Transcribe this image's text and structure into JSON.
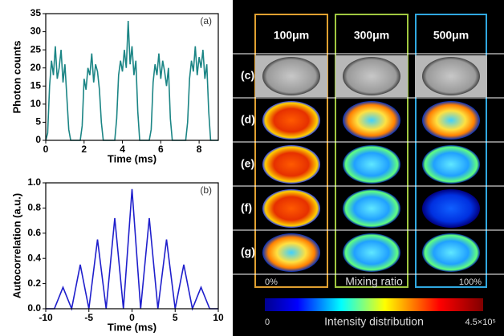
{
  "chart_data": [
    {
      "type": "line",
      "panel_label": "(a)",
      "y_label": "Photon counts",
      "x_label": "Time (ms)",
      "xlim": [
        0,
        9
      ],
      "xticks": [
        0,
        2,
        4,
        6,
        8
      ],
      "ylim": [
        0,
        35
      ],
      "yticks": [
        0,
        5,
        10,
        15,
        20,
        25,
        30,
        35
      ],
      "grid": false,
      "x": [
        0,
        0.1,
        0.2,
        0.3,
        0.4,
        0.5,
        0.6,
        0.7,
        0.8,
        0.9,
        1.0,
        1.1,
        1.2,
        1.3,
        1.4,
        1.5,
        1.6,
        1.7,
        1.8,
        1.9,
        2.0,
        2.1,
        2.2,
        2.3,
        2.4,
        2.5,
        2.6,
        2.7,
        2.8,
        2.9,
        3.0,
        3.1,
        3.2,
        3.3,
        3.4,
        3.5,
        3.6,
        3.7,
        3.8,
        3.9,
        4.0,
        4.1,
        4.2,
        4.3,
        4.4,
        4.5,
        4.6,
        4.7,
        4.8,
        4.9,
        5.0,
        5.1,
        5.2,
        5.3,
        5.4,
        5.5,
        5.6,
        5.7,
        5.8,
        5.9,
        6.0,
        6.1,
        6.2,
        6.3,
        6.4,
        6.5,
        6.6,
        6.7,
        6.8,
        6.9,
        7.0,
        7.1,
        7.2,
        7.3,
        7.4,
        7.5,
        7.6,
        7.7,
        7.8,
        7.9,
        8.0,
        8.1,
        8.2,
        8.3,
        8.4,
        8.5,
        8.6,
        8.7,
        8.8,
        8.9,
        9.0
      ],
      "series": [
        {
          "color": "#1b8585",
          "values": [
            0,
            2,
            15,
            22,
            18,
            26,
            17,
            20,
            25,
            16,
            21,
            12,
            3,
            0,
            0,
            0,
            0,
            0,
            0,
            4,
            17,
            14,
            20,
            18,
            24,
            16,
            21,
            19,
            14,
            5,
            0,
            0,
            0,
            0,
            0,
            0,
            0,
            6,
            18,
            22,
            19,
            25,
            20,
            33,
            21,
            26,
            18,
            22,
            8,
            0,
            0,
            0,
            0,
            0,
            0,
            3,
            16,
            21,
            18,
            24,
            17,
            22,
            19,
            15,
            20,
            6,
            0,
            0,
            0,
            0,
            0,
            0,
            0,
            0,
            5,
            17,
            22,
            19,
            26,
            18,
            23,
            20,
            25,
            17,
            21,
            8,
            0,
            0,
            0,
            0,
            0
          ]
        }
      ]
    },
    {
      "type": "line",
      "panel_label": "(b)",
      "y_label": "Autocorrelation (a.u.)",
      "x_label": "Time (ms)",
      "xlim": [
        -10,
        10
      ],
      "xticks": [
        -10,
        -5,
        0,
        5,
        10
      ],
      "ylim": [
        0,
        1
      ],
      "yticks": [
        {
          "value": 0,
          "label": "0.0"
        },
        0.2,
        0.4,
        0.6,
        0.8,
        {
          "value": 1,
          "label": "1.0"
        }
      ],
      "grid": false,
      "x": [
        -10,
        -9,
        -8,
        -7,
        -6,
        -5,
        -4,
        -3,
        -2,
        -1,
        0,
        1,
        2,
        3,
        4,
        5,
        6,
        7,
        8,
        9,
        10
      ],
      "series": [
        {
          "color": "#1f1fcc",
          "values": [
            0,
            0,
            0.17,
            0,
            0.35,
            0,
            0.55,
            0,
            0.72,
            0,
            0.95,
            0,
            0.72,
            0,
            0.55,
            0,
            0.35,
            0,
            0.17,
            0,
            0
          ]
        }
      ]
    }
  ],
  "image_panel": {
    "columns": [
      "100μm",
      "300μm",
      "500μm"
    ],
    "rows": [
      "(c)",
      "(d)",
      "(e)",
      "(f)",
      "(g)"
    ],
    "mixing_bar": {
      "min_label": "0%",
      "title": "Mixing ratio",
      "max_label": "100%"
    },
    "intensity_bar": {
      "min_label": "0",
      "title": "Intensity distribution",
      "max_label": "4.5×10⁵"
    }
  }
}
